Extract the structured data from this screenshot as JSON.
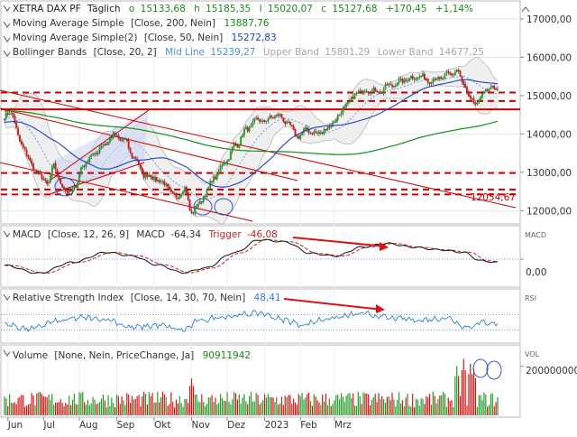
{
  "header": {
    "instrument": "XETRA DAX PF",
    "period": "Täglich",
    "ohlc": [
      {
        "label": "o",
        "value": "15133,68"
      },
      {
        "label": "h",
        "value": "15185,35"
      },
      {
        "label": "l",
        "value": "15020,07"
      },
      {
        "label": "c",
        "value": "15127,68"
      }
    ],
    "change_abs": "+170,45",
    "change_pct": "+1,14%"
  },
  "indicators": {
    "sma200": {
      "label": "Moving Average Simple",
      "params": "[Close, 200, Nein]",
      "value": "13887,76",
      "color": "#1a8a1a"
    },
    "sma50": {
      "label": "Moving Average Simple(2)",
      "params": "[Close, 50, Nein]",
      "value": "15272,83",
      "color": "#2040c0"
    },
    "bollinger": {
      "label": "Bollinger Bands",
      "params": "[Close, 20, 2]",
      "mid_label": "Mid Line",
      "mid_value": "15239,27",
      "upper_label": "Upper Band",
      "upper_value": "15801,29",
      "lower_label": "Lower Band",
      "lower_value": "14677,25",
      "mid_color": "#4a90d9"
    }
  },
  "macd_panel": {
    "label": "MACD",
    "params": "[Close, 12, 26, 9]",
    "value_label": "MACD",
    "value": "-64,34",
    "trigger_label": "Trigger",
    "trigger_value": "-46,08",
    "corner_label": "MACD",
    "zero_label": "0,00"
  },
  "rsi_panel": {
    "label": "Relative Strength Index",
    "params": "[Close, 14, 30, 70, Nein]",
    "value": "48,41",
    "corner_label": "RSI"
  },
  "volume_panel": {
    "label": "Volume",
    "params": "[None, Nein, PriceChange, Ja]",
    "value": "90911942",
    "corner_label": "VOL",
    "tick_label": "200000000"
  },
  "annotation": {
    "trendline_value": "12054,67"
  },
  "colors": {
    "up": "#2a9a2a",
    "down": "#d01818",
    "sma200": "#1a8a1a",
    "sma50": "#2040c0",
    "bollinger": "#4a90d9",
    "support": "#cc0000",
    "trend": "#cc0000"
  },
  "chart_data": {
    "type": "candlestick",
    "x_ticks": [
      "Jun",
      "Jul",
      "Aug",
      "Sep",
      "Okt",
      "Nov",
      "Dez",
      "2023",
      "Feb",
      "Mrz"
    ],
    "y_ticks": [
      12000,
      13000,
      14000,
      15000,
      16000,
      17000
    ],
    "y_tick_labels": [
      "12000,00",
      "13000,00",
      "14000,00",
      "15000,00",
      "16000,00",
      "17000,00"
    ],
    "ylim": [
      11700,
      17400
    ],
    "price_keypoints": [
      [
        0,
        14450
      ],
      [
        4,
        14550
      ],
      [
        10,
        13700
      ],
      [
        18,
        13050
      ],
      [
        25,
        12700
      ],
      [
        29,
        13150
      ],
      [
        32,
        12800
      ],
      [
        37,
        12450
      ],
      [
        42,
        12650
      ],
      [
        46,
        13200
      ],
      [
        52,
        13450
      ],
      [
        58,
        13700
      ],
      [
        64,
        13950
      ],
      [
        70,
        13850
      ],
      [
        76,
        13400
      ],
      [
        82,
        12950
      ],
      [
        88,
        12850
      ],
      [
        94,
        12700
      ],
      [
        100,
        12350
      ],
      [
        106,
        12550
      ],
      [
        110,
        11950
      ],
      [
        114,
        12150
      ],
      [
        118,
        12450
      ],
      [
        124,
        12900
      ],
      [
        130,
        13300
      ],
      [
        136,
        13700
      ],
      [
        142,
        14100
      ],
      [
        148,
        14350
      ],
      [
        154,
        14350
      ],
      [
        160,
        14500
      ],
      [
        166,
        14300
      ],
      [
        172,
        13950
      ],
      [
        178,
        14100
      ],
      [
        184,
        14000
      ],
      [
        190,
        14150
      ],
      [
        196,
        14450
      ],
      [
        202,
        14800
      ],
      [
        208,
        15100
      ],
      [
        214,
        15150
      ],
      [
        220,
        15100
      ],
      [
        226,
        15250
      ],
      [
        232,
        15350
      ],
      [
        238,
        15450
      ],
      [
        244,
        15500
      ],
      [
        250,
        15400
      ],
      [
        256,
        15450
      ],
      [
        262,
        15550
      ],
      [
        266,
        15650
      ],
      [
        270,
        15300
      ],
      [
        274,
        14850
      ],
      [
        278,
        14800
      ],
      [
        282,
        15100
      ],
      [
        286,
        15200
      ],
      [
        290,
        15150
      ]
    ],
    "horizontal_levels": [
      {
        "value": 15080,
        "style": "dashed"
      },
      {
        "value": 14860,
        "style": "dashed"
      },
      {
        "value": 14640,
        "style": "solid"
      },
      {
        "value": 12980,
        "style": "dashed"
      },
      {
        "value": 12550,
        "style": "dashed"
      },
      {
        "value": 12420,
        "style": "dashed"
      }
    ],
    "macd": {
      "ylim": [
        -500,
        500
      ],
      "keypoints": [
        [
          0,
          -120
        ],
        [
          20,
          -270
        ],
        [
          40,
          -60
        ],
        [
          60,
          130
        ],
        [
          75,
          60
        ],
        [
          90,
          -110
        ],
        [
          105,
          -260
        ],
        [
          118,
          -170
        ],
        [
          135,
          120
        ],
        [
          150,
          370
        ],
        [
          165,
          330
        ],
        [
          180,
          110
        ],
        [
          195,
          60
        ],
        [
          210,
          230
        ],
        [
          225,
          300
        ],
        [
          240,
          230
        ],
        [
          255,
          180
        ],
        [
          270,
          130
        ],
        [
          280,
          -30
        ],
        [
          290,
          -64
        ]
      ]
    },
    "rsi": {
      "ylim": [
        0,
        100
      ],
      "upper": 70,
      "lower": 30,
      "keypoints": [
        [
          0,
          45
        ],
        [
          15,
          32
        ],
        [
          30,
          52
        ],
        [
          45,
          62
        ],
        [
          60,
          58
        ],
        [
          75,
          36
        ],
        [
          90,
          42
        ],
        [
          105,
          30
        ],
        [
          115,
          55
        ],
        [
          130,
          66
        ],
        [
          150,
          74
        ],
        [
          165,
          56
        ],
        [
          175,
          44
        ],
        [
          190,
          60
        ],
        [
          210,
          72
        ],
        [
          230,
          60
        ],
        [
          245,
          56
        ],
        [
          260,
          62
        ],
        [
          272,
          38
        ],
        [
          282,
          50
        ],
        [
          290,
          48
        ]
      ]
    },
    "volume": {
      "ylim": [
        0,
        280000000
      ],
      "base": 72000000,
      "spikes": [
        [
          110,
          150000000
        ],
        [
          266,
          200000000
        ],
        [
          270,
          230000000
        ],
        [
          274,
          210000000
        ],
        [
          276,
          190000000
        ]
      ]
    }
  }
}
